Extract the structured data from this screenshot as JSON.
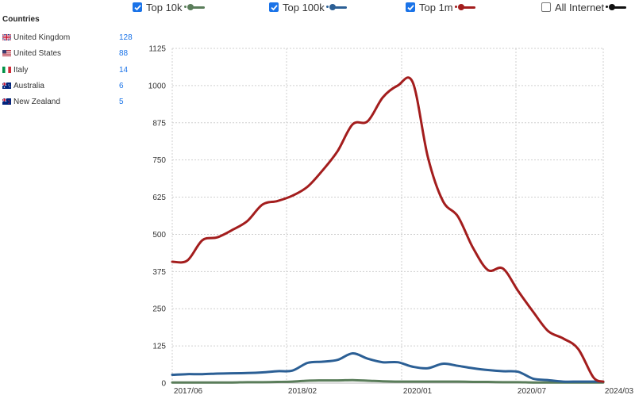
{
  "legend": [
    {
      "label": "Top 10k",
      "checked": true,
      "color": "#5a7d5a"
    },
    {
      "label": "Top 100k",
      "checked": true,
      "color": "#2b5f95"
    },
    {
      "label": "Top 1m",
      "checked": true,
      "color": "#a31d1d"
    },
    {
      "label": "All Internet",
      "checked": false,
      "color": "#111111"
    }
  ],
  "countries": {
    "title": "Countries",
    "items": [
      {
        "name": "United Kingdom",
        "count": "128",
        "flag": "uk-flag-icon"
      },
      {
        "name": "United States",
        "count": "88",
        "flag": "us-flag-icon"
      },
      {
        "name": "Italy",
        "count": "14",
        "flag": "italy-flag-icon"
      },
      {
        "name": "Australia",
        "count": "6",
        "flag": "australia-flag-icon"
      },
      {
        "name": "New Zealand",
        "count": "5",
        "flag": "new-zealand-flag-icon"
      }
    ]
  },
  "chart_data": {
    "type": "line",
    "title": "",
    "xlabel": "",
    "ylabel": "",
    "ylim": [
      0,
      1125
    ],
    "yticks": [
      0,
      125,
      250,
      375,
      500,
      625,
      750,
      875,
      1000,
      1125
    ],
    "xlim": [
      "2017-01",
      "2024-03"
    ],
    "xticks": [
      "2017/06",
      "2018/02",
      "2020/01",
      "2020/07",
      "2024/03"
    ],
    "grid": true,
    "x": [
      "2017-01",
      "2017-04",
      "2017-07",
      "2017-10",
      "2018-01",
      "2018-04",
      "2018-07",
      "2018-10",
      "2019-01",
      "2019-04",
      "2019-07",
      "2019-10",
      "2020-01",
      "2020-04",
      "2020-07",
      "2020-10",
      "2021-01",
      "2021-04",
      "2021-07",
      "2021-10",
      "2022-01",
      "2022-04",
      "2022-07",
      "2022-10",
      "2023-01",
      "2023-04",
      "2023-07",
      "2023-10",
      "2024-01",
      "2024-03"
    ],
    "series": [
      {
        "name": "Top 1m",
        "color": "#a31d1d",
        "values": [
          408,
          412,
          480,
          490,
          515,
          545,
          600,
          612,
          630,
          660,
          715,
          780,
          870,
          880,
          960,
          1000,
          1010,
          760,
          612,
          560,
          455,
          380,
          385,
          310,
          240,
          175,
          150,
          115,
          20,
          5
        ]
      },
      {
        "name": "Top 100k",
        "color": "#2b5f95",
        "values": [
          28,
          30,
          30,
          32,
          33,
          34,
          36,
          40,
          42,
          68,
          72,
          78,
          100,
          82,
          70,
          70,
          55,
          50,
          65,
          58,
          50,
          44,
          40,
          38,
          15,
          10,
          5,
          5,
          5,
          5
        ]
      },
      {
        "name": "Top 10k",
        "color": "#5a7d5a",
        "values": [
          2,
          2,
          2,
          2,
          2,
          3,
          3,
          4,
          5,
          8,
          9,
          9,
          10,
          8,
          6,
          5,
          5,
          5,
          5,
          5,
          4,
          4,
          3,
          3,
          2,
          2,
          2,
          2,
          2,
          2
        ]
      }
    ]
  }
}
